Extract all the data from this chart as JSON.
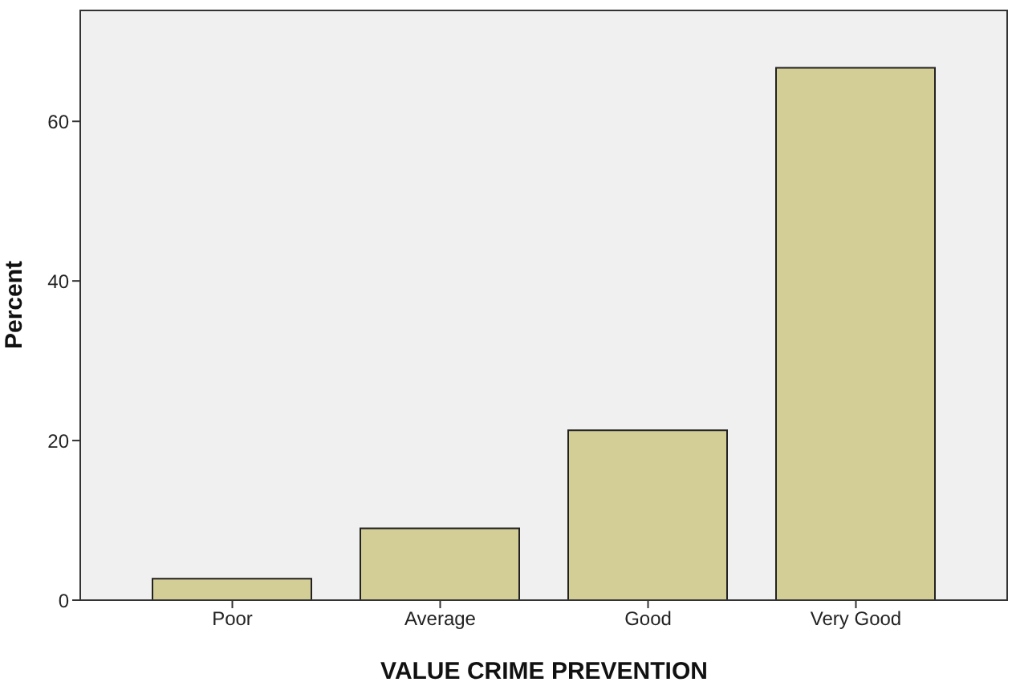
{
  "chart_data": {
    "type": "bar",
    "xlabel": "VALUE CRIME PREVENTION",
    "ylabel": "Percent",
    "categories": [
      "Poor",
      "Average",
      "Good",
      "Very Good"
    ],
    "values": [
      2.7,
      9.0,
      21.3,
      66.7
    ],
    "color": "#d3cd96",
    "ylim": [
      0,
      74
    ],
    "yticks": [
      0,
      20,
      40,
      60
    ],
    "grid": false,
    "legend": false
  }
}
